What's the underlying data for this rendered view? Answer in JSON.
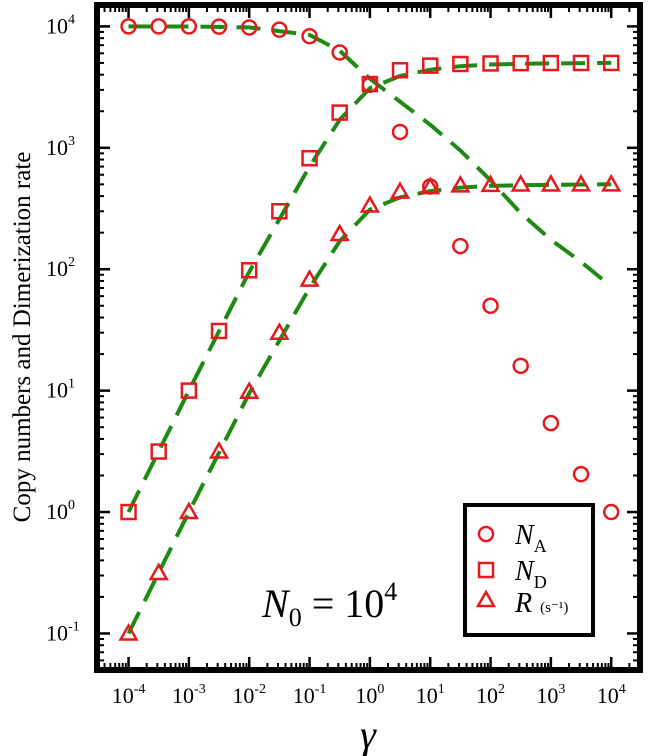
{
  "chart_data": {
    "type": "scatter",
    "title": "",
    "xlabel": "γ",
    "ylabel": "Copy numbers and Dimerization rate",
    "xscale": "log",
    "yscale": "log",
    "xlim": [
      3e-05,
      30000
    ],
    "ylim": [
      0.05,
      15000
    ],
    "x_ticks": [
      {
        "value": 0.0001,
        "base": "10",
        "exp": "-4"
      },
      {
        "value": 0.001,
        "base": "10",
        "exp": "-3"
      },
      {
        "value": 0.01,
        "base": "10",
        "exp": "-2"
      },
      {
        "value": 0.1,
        "base": "10",
        "exp": "-1"
      },
      {
        "value": 1,
        "base": "10",
        "exp": "0"
      },
      {
        "value": 10,
        "base": "10",
        "exp": "1"
      },
      {
        "value": 100,
        "base": "10",
        "exp": "2"
      },
      {
        "value": 1000,
        "base": "10",
        "exp": "3"
      },
      {
        "value": 10000,
        "base": "10",
        "exp": "4"
      }
    ],
    "y_ticks": [
      {
        "value": 0.1,
        "base": "10",
        "exp": "-1"
      },
      {
        "value": 1,
        "base": "10",
        "exp": "0"
      },
      {
        "value": 10,
        "base": "10",
        "exp": "1"
      },
      {
        "value": 100,
        "base": "10",
        "exp": "2"
      },
      {
        "value": 1000,
        "base": "10",
        "exp": "3"
      },
      {
        "value": 10000,
        "base": "10",
        "exp": "4"
      }
    ],
    "annotation": {
      "var": "N",
      "sub": "0",
      "eq": " = 10",
      "sup": "4"
    },
    "marker_color": "#e8191c",
    "fit_color": "#1e8a14",
    "legend": {
      "position": "bottom-right",
      "entries": [
        {
          "marker": "circle",
          "var": "N",
          "sub": "A",
          "unit": ""
        },
        {
          "marker": "square",
          "var": "N",
          "sub": "D",
          "unit": ""
        },
        {
          "marker": "triangle",
          "var": "R",
          "sub": "",
          "unit": "(s⁻¹)"
        }
      ]
    },
    "series": [
      {
        "name": "N_A",
        "marker": "circle",
        "x": [
          0.0001,
          0.000316,
          0.001,
          0.00316,
          0.01,
          0.0316,
          0.1,
          0.316,
          1,
          3.16,
          10,
          31.6,
          100,
          316,
          1000,
          3160,
          10000
        ],
        "y": [
          10000,
          10000,
          10000,
          9950,
          9800,
          9400,
          8300,
          6100,
          3300,
          1350,
          480,
          155,
          50,
          16,
          5.4,
          2.05,
          1.0
        ]
      },
      {
        "name": "N_D",
        "marker": "square",
        "x": [
          0.0001,
          0.000316,
          0.001,
          0.00316,
          0.01,
          0.0316,
          0.1,
          0.316,
          1,
          3.16,
          10,
          31.6,
          100,
          316,
          1000,
          3160,
          10000
        ],
        "y": [
          1.0,
          3.15,
          10,
          31,
          98,
          300,
          820,
          1950,
          3350,
          4350,
          4750,
          4900,
          4950,
          4980,
          4990,
          4995,
          5000
        ]
      },
      {
        "name": "R",
        "marker": "triangle",
        "x": [
          0.0001,
          0.000316,
          0.001,
          0.00316,
          0.01,
          0.0316,
          0.1,
          0.316,
          1,
          3.16,
          10,
          31.6,
          100,
          316,
          1000,
          3160,
          10000
        ],
        "y": [
          0.1,
          0.315,
          1.0,
          3.15,
          9.8,
          30,
          82,
          195,
          335,
          435,
          475,
          490,
          495,
          498,
          499,
          500,
          500
        ]
      }
    ],
    "fits": [
      {
        "name": "N_A fit",
        "style": "dashed",
        "x": [
          0.0001,
          0.001,
          0.01,
          0.1,
          0.316,
          1,
          3.16,
          10,
          31.6,
          100,
          316,
          1000,
          3160,
          10000
        ],
        "y": [
          10000,
          9980,
          9800,
          8500,
          6300,
          3700,
          2400,
          1550,
          950,
          540,
          290,
          175,
          115,
          72
        ]
      },
      {
        "name": "N_D fit",
        "style": "dashed",
        "x": [
          0.0001,
          0.001,
          0.01,
          0.1,
          0.316,
          1,
          3.16,
          10,
          31.6,
          100,
          316,
          1000,
          10000
        ],
        "y": [
          1.0,
          10,
          95,
          700,
          1700,
          3100,
          3900,
          4400,
          4700,
          4850,
          4920,
          4960,
          5000
        ]
      },
      {
        "name": "R fit",
        "style": "dashed",
        "x": [
          0.0001,
          0.001,
          0.01,
          0.1,
          0.316,
          1,
          3.16,
          10,
          31.6,
          100,
          316,
          1000,
          10000
        ],
        "y": [
          0.1,
          1.0,
          9.5,
          70,
          170,
          310,
          390,
          440,
          470,
          485,
          492,
          496,
          500
        ]
      }
    ]
  }
}
